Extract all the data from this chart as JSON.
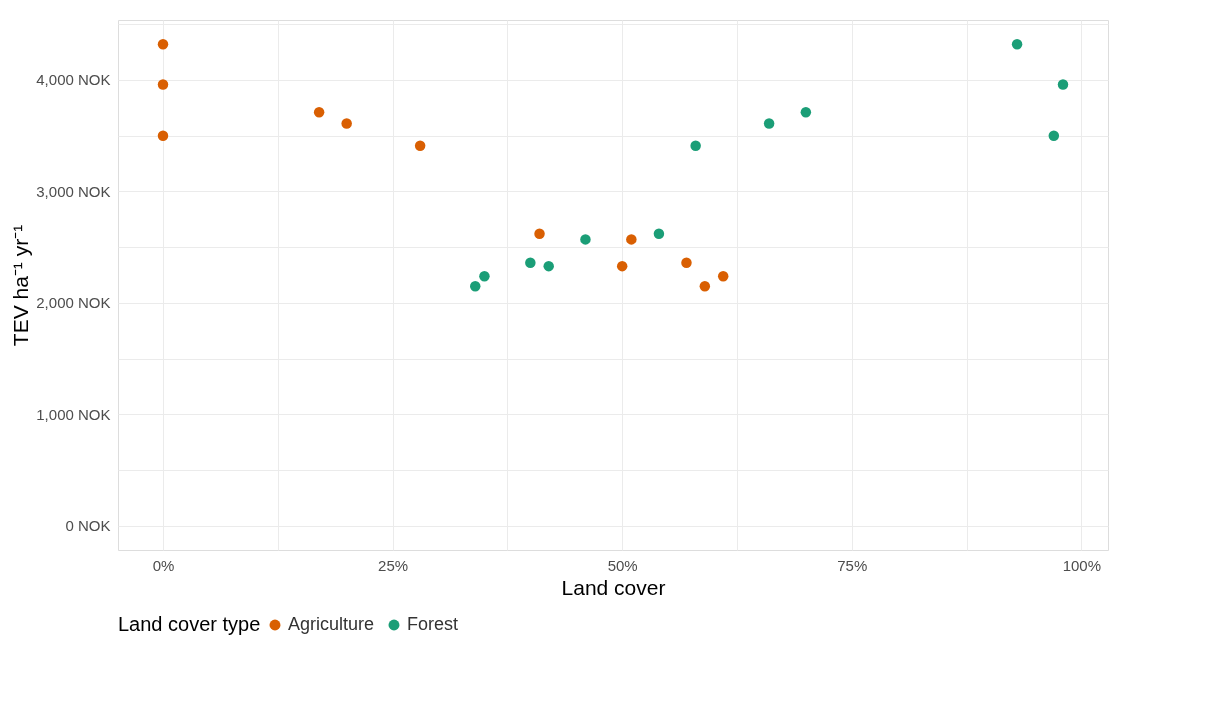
{
  "chart_data": {
    "type": "scatter",
    "xlabel": "Land cover",
    "ylabel": "TEV ha⁻¹ yr⁻¹",
    "legend_title": "Land cover type",
    "series": [
      {
        "name": "Agriculture",
        "color": "#d95f02",
        "x": [
          0,
          0,
          0,
          17,
          20,
          28,
          41,
          51,
          50,
          57,
          59,
          61
        ],
        "values": [
          4320,
          3960,
          3500,
          3710,
          3610,
          3410,
          2620,
          2570,
          2330,
          2360,
          2150,
          2240
        ]
      },
      {
        "name": "Forest",
        "color": "#1b9e77",
        "x": [
          93,
          98,
          97,
          70,
          66,
          58,
          54,
          46,
          42,
          40,
          35,
          34
        ],
        "values": [
          4320,
          3960,
          3500,
          3710,
          3610,
          3410,
          2620,
          2570,
          2330,
          2360,
          2240,
          2150
        ]
      }
    ],
    "xlim": [
      -4.9,
      102.9
    ],
    "xticks": [
      {
        "value": 0,
        "label": "0%"
      },
      {
        "value": 12.5,
        "label": null
      },
      {
        "value": 25,
        "label": "25%"
      },
      {
        "value": 37.5,
        "label": null
      },
      {
        "value": 50,
        "label": "50%"
      },
      {
        "value": 62.5,
        "label": null
      },
      {
        "value": 75,
        "label": "75%"
      },
      {
        "value": 87.5,
        "label": null
      },
      {
        "value": 100,
        "label": "100%"
      }
    ],
    "ylim": [
      -216,
      4538
    ],
    "yticks": [
      {
        "value": 0,
        "label": "0 NOK"
      },
      {
        "value": 500,
        "label": null
      },
      {
        "value": 1000,
        "label": "1,000 NOK"
      },
      {
        "value": 1500,
        "label": null
      },
      {
        "value": 2000,
        "label": "2,000 NOK"
      },
      {
        "value": 2500,
        "label": null
      },
      {
        "value": 3000,
        "label": "3,000 NOK"
      },
      {
        "value": 3500,
        "label": null
      },
      {
        "value": 4000,
        "label": "4,000 NOK"
      },
      {
        "value": 4500,
        "label": null
      }
    ],
    "grid": true,
    "legend": "bottom",
    "marker": "circle"
  }
}
